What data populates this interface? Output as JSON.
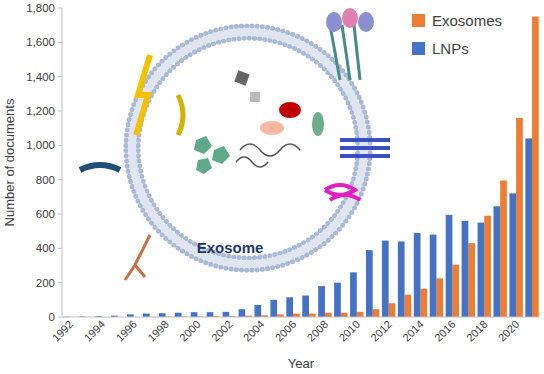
{
  "chart_data": {
    "type": "bar",
    "annotation": "Exosome",
    "x_label": "Year",
    "y_label": "Number of documents",
    "categories": [
      "1992",
      null,
      "1994",
      null,
      "1996",
      null,
      "1998",
      null,
      "2000",
      null,
      "2002",
      null,
      "2004",
      null,
      "2006",
      null,
      "2008",
      null,
      "2010",
      null,
      "2012",
      null,
      "2014",
      null,
      "2016",
      null,
      "2018",
      null,
      "2020",
      null
    ],
    "series": [
      {
        "name": "Exosomes",
        "color": "#ed7d31",
        "values": [
          0,
          0,
          0,
          0,
          0,
          1,
          2,
          3,
          3,
          5,
          5,
          8,
          10,
          15,
          20,
          20,
          25,
          25,
          30,
          45,
          80,
          130,
          165,
          225,
          305,
          430,
          590,
          795,
          1160,
          1750
        ]
      },
      {
        "name": "LNPs",
        "color": "#4472c4",
        "values": [
          2,
          3,
          5,
          8,
          15,
          20,
          22,
          25,
          28,
          28,
          30,
          45,
          70,
          100,
          115,
          125,
          180,
          200,
          260,
          390,
          445,
          440,
          490,
          480,
          595,
          560,
          550,
          645,
          720,
          1040
        ]
      }
    ],
    "ylim": [
      0,
      1800
    ],
    "yticks": [
      0,
      200,
      400,
      600,
      800,
      {
        "value": 1000,
        "label": "1,000"
      },
      {
        "value": 1200,
        "label": "1,200"
      },
      {
        "value": 1400,
        "label": "1,400"
      },
      {
        "value": 1600,
        "label": "1,600"
      },
      {
        "value": 1800,
        "label": "1,800"
      }
    ],
    "grid": false,
    "legend": "top-right"
  }
}
